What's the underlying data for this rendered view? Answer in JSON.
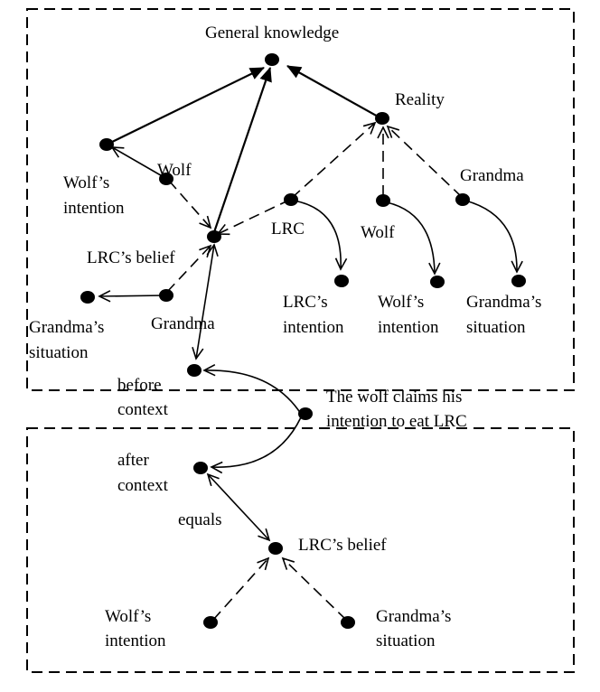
{
  "labels": {
    "general_knowledge": "General knowledge",
    "reality": "Reality",
    "wolf_intention_top_1": "Wolf’s",
    "wolf_intention_top_2": "intention",
    "wolf_top": "Wolf",
    "lrc_belief_top": "LRC’s belief",
    "grandma_situation_top_1": "Grandma’s",
    "grandma_situation_top_2": "situation",
    "grandma_top": "Grandma",
    "before_context_1": "before",
    "before_context_2": "context",
    "lrc": "LRC",
    "wolf_right": "Wolf",
    "grandma_right": "Grandma",
    "lrc_intention_1": "LRC’s",
    "lrc_intention_2": "intention",
    "wolf_intention_right_1": "Wolf’s",
    "wolf_intention_right_2": "intention",
    "grandma_situation_right_1": "Grandma’s",
    "grandma_situation_right_2": "situation",
    "event_1": "The wolf claims his",
    "event_2": "intention to eat LRC",
    "after_context_1": "after",
    "after_context_2": "context",
    "equals": "equals",
    "lrc_belief_bottom": "LRC’s belief",
    "wolf_intention_bottom_1": "Wolf’s",
    "wolf_intention_bottom_2": "intention",
    "grandma_situation_bottom_1": "Grandma’s",
    "grandma_situation_bottom_2": "situation"
  }
}
